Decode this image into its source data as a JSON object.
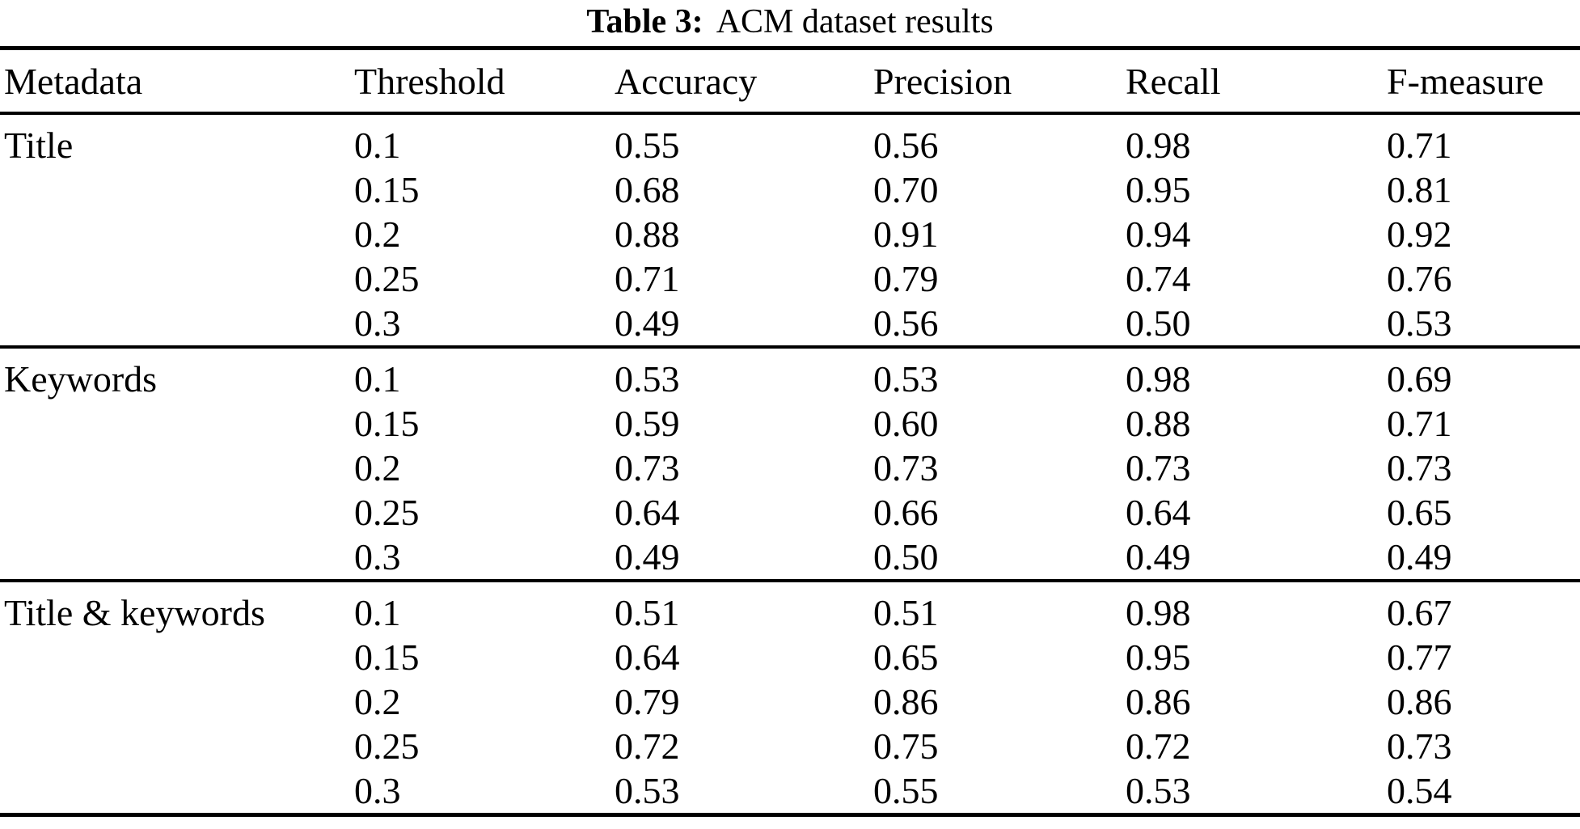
{
  "caption": {
    "label": "Table 3:",
    "title": "ACM dataset results"
  },
  "colors": {
    "text": "#000000",
    "background": "#ffffff",
    "rule": "#000000"
  },
  "table": {
    "headers": [
      "Metadata",
      "Threshold",
      "Accuracy",
      "Precision",
      "Recall",
      "F-measure"
    ],
    "groups": [
      {
        "metadata": "Title",
        "rows": [
          [
            "0.1",
            "0.55",
            "0.56",
            "0.98",
            "0.71"
          ],
          [
            "0.15",
            "0.68",
            "0.70",
            "0.95",
            "0.81"
          ],
          [
            "0.2",
            "0.88",
            "0.91",
            "0.94",
            "0.92"
          ],
          [
            "0.25",
            "0.71",
            "0.79",
            "0.74",
            "0.76"
          ],
          [
            "0.3",
            "0.49",
            "0.56",
            "0.50",
            "0.53"
          ]
        ]
      },
      {
        "metadata": "Keywords",
        "rows": [
          [
            "0.1",
            "0.53",
            "0.53",
            "0.98",
            "0.69"
          ],
          [
            "0.15",
            "0.59",
            "0.60",
            "0.88",
            "0.71"
          ],
          [
            "0.2",
            "0.73",
            "0.73",
            "0.73",
            "0.73"
          ],
          [
            "0.25",
            "0.64",
            "0.66",
            "0.64",
            "0.65"
          ],
          [
            "0.3",
            "0.49",
            "0.50",
            "0.49",
            "0.49"
          ]
        ]
      },
      {
        "metadata": "Title & keywords",
        "rows": [
          [
            "0.1",
            "0.51",
            "0.51",
            "0.98",
            "0.67"
          ],
          [
            "0.15",
            "0.64",
            "0.65",
            "0.95",
            "0.77"
          ],
          [
            "0.2",
            "0.79",
            "0.86",
            "0.86",
            "0.86"
          ],
          [
            "0.25",
            "0.72",
            "0.75",
            "0.72",
            "0.73"
          ],
          [
            "0.3",
            "0.53",
            "0.55",
            "0.53",
            "0.54"
          ]
        ]
      }
    ]
  }
}
